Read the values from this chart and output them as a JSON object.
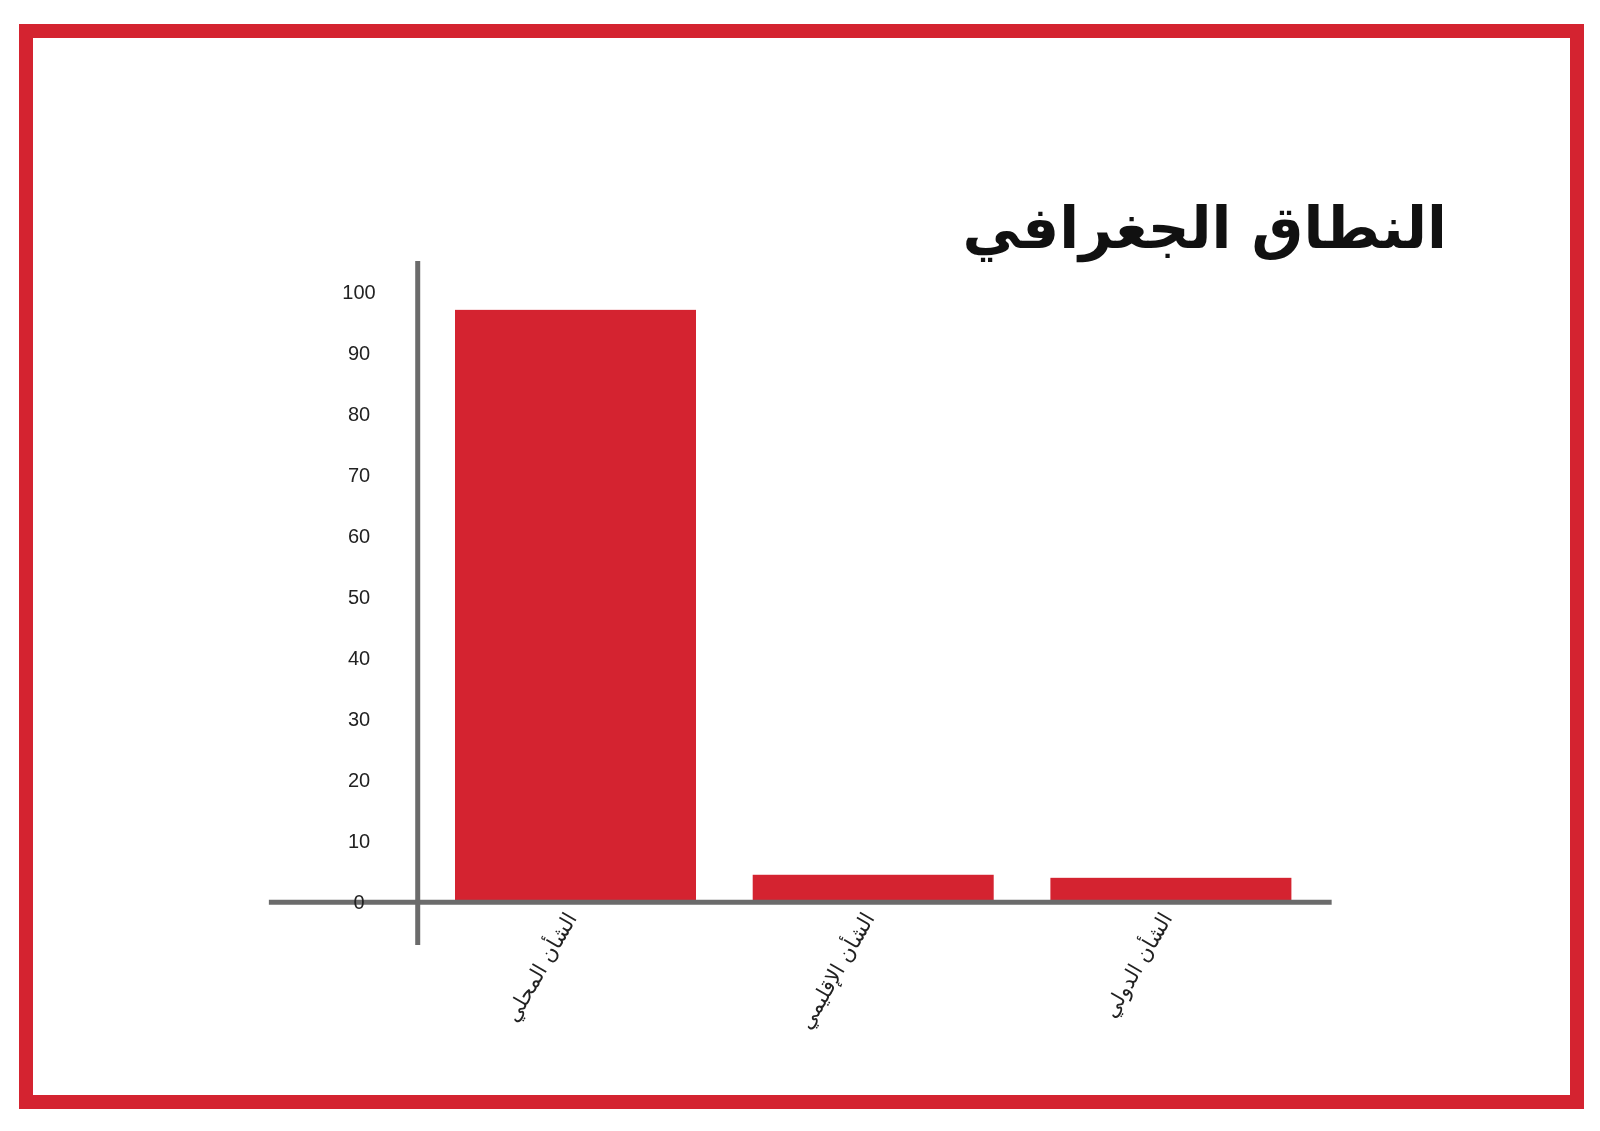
{
  "chart_data": {
    "type": "bar",
    "title": "النطاق الجغرافي",
    "categories": [
      "الشأن المحلي",
      "الشأن الإقليمي",
      "الشأن الدولي"
    ],
    "values": [
      97,
      4.5,
      4
    ],
    "color": "#d42330",
    "ylim": [
      -7,
      105
    ],
    "yticks": [
      0,
      10,
      20,
      30,
      40,
      50,
      60,
      70,
      80,
      90,
      100
    ],
    "grid": false
  }
}
